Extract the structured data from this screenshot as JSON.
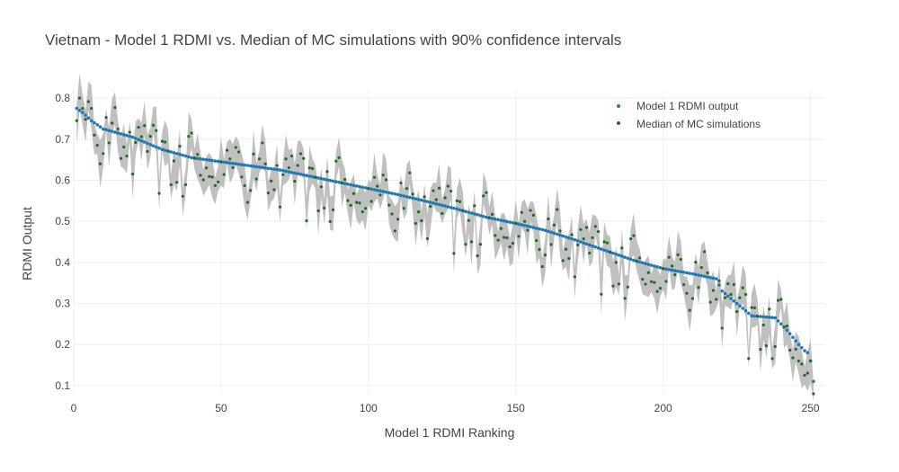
{
  "chart_data": {
    "type": "scatter",
    "title": "Vietnam - Model 1 RDMI vs. Median of MC simulations with 90% confidence intervals",
    "xlabel": "Model 1 RDMI Ranking",
    "ylabel": "RDMI Output",
    "xlim": [
      0,
      255
    ],
    "ylim": [
      0.08,
      0.82
    ],
    "x_ticks": [
      0,
      50,
      100,
      150,
      200,
      250
    ],
    "y_ticks": [
      0.1,
      0.2,
      0.3,
      0.4,
      0.5,
      0.6,
      0.7,
      0.8
    ],
    "x_tick_labels": [
      "0",
      "50",
      "100",
      "150",
      "200",
      "250"
    ],
    "y_tick_labels": [
      "0.1",
      "0.2",
      "0.3",
      "0.4",
      "0.5",
      "0.6",
      "0.7",
      "0.8"
    ],
    "grid": true,
    "legend_position": "top-right",
    "n_points": 251,
    "colors": {
      "model_output": "#1f77b4",
      "median_mc": "#1f6b1f",
      "confidence_band": "#c0c0c0"
    },
    "series": [
      {
        "name": "Model 1 RDMI output",
        "kind": "points",
        "anchors_x": [
          1,
          3,
          6,
          10,
          15,
          20,
          25,
          30,
          40,
          50,
          60,
          70,
          80,
          90,
          100,
          110,
          120,
          130,
          140,
          150,
          160,
          170,
          180,
          190,
          200,
          210,
          218,
          220,
          225,
          230,
          238,
          242,
          246,
          248,
          249,
          250,
          251
        ],
        "anchors_y": [
          0.775,
          0.765,
          0.745,
          0.725,
          0.715,
          0.705,
          0.69,
          0.675,
          0.655,
          0.645,
          0.635,
          0.625,
          0.61,
          0.595,
          0.58,
          0.565,
          0.548,
          0.53,
          0.51,
          0.495,
          0.478,
          0.455,
          0.43,
          0.405,
          0.385,
          0.372,
          0.36,
          0.33,
          0.3,
          0.27,
          0.265,
          0.235,
          0.2,
          0.185,
          0.18,
          0.16,
          0.11
        ]
      },
      {
        "name": "Median of MC simulations",
        "kind": "points",
        "offsets_from_model_output": [
          -0.03,
          -0.05,
          -0.1,
          0.02,
          0.01,
          -0.06,
          -0.09,
          0.03,
          -0.02,
          -0.07,
          0.02,
          0.04,
          -0.03,
          -0.06,
          0.01,
          -0.04,
          0.05,
          0.0,
          -0.02,
          -0.05,
          0.03,
          -0.01,
          -0.04,
          0.06,
          -0.08,
          0.02,
          0.01,
          -0.03,
          0.04,
          -0.06,
          0.0,
          -0.02,
          0.05,
          -0.09,
          0.02,
          0.03,
          -0.05,
          0.01,
          -0.07,
          0.04,
          -0.01,
          0.06,
          -0.03,
          0.0,
          -0.04,
          0.02,
          -0.11,
          0.03,
          0.01,
          -0.05
        ]
      },
      {
        "name": "90% confidence interval",
        "kind": "band",
        "half_width": 0.04,
        "jitter_scale": 0.5
      }
    ]
  }
}
